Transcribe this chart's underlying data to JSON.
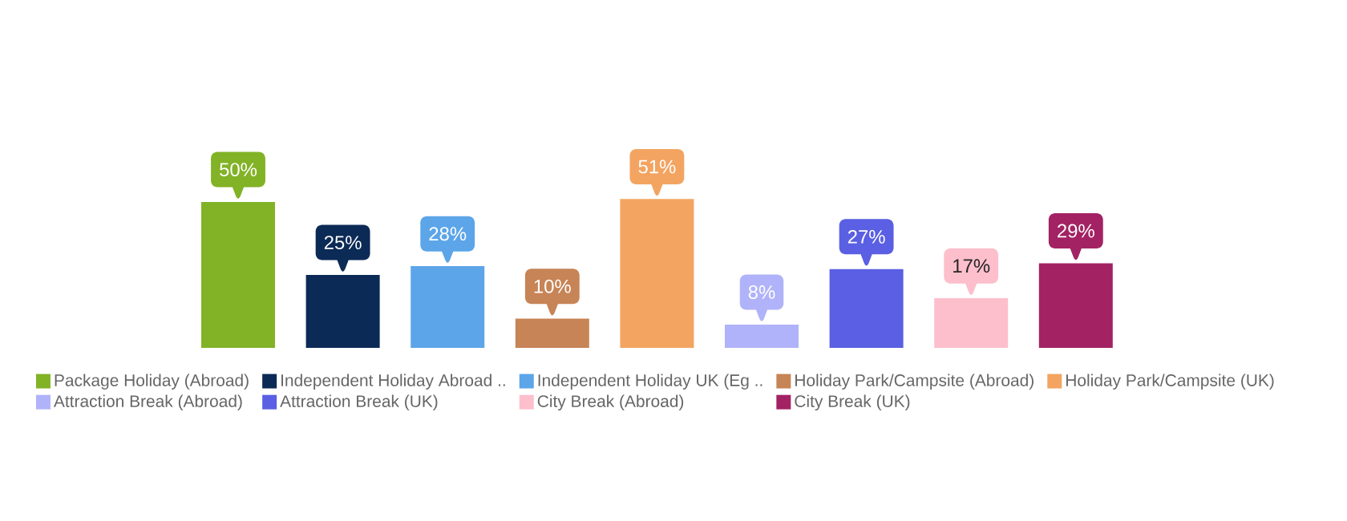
{
  "chart_data": {
    "type": "bar",
    "stacked": true,
    "legend": "bottom",
    "tick_labels": false,
    "categories": [
      null,
      null,
      null,
      null,
      null,
      null,
      null,
      null,
      null
    ],
    "series": [
      {
        "name": "Package Holiday (Abroad)",
        "color": "#82b226",
        "values": [
          50,
          null,
          null,
          null,
          null,
          null,
          null,
          null,
          null
        ],
        "value_labels": [
          "50%",
          null,
          null,
          null,
          null,
          null,
          null,
          null,
          null
        ]
      },
      {
        "name": "Independent Holiday Abroad ..",
        "color": "#0c2a56",
        "values": [
          null,
          25,
          null,
          null,
          null,
          null,
          null,
          null,
          null
        ],
        "value_labels": [
          null,
          "25%",
          null,
          null,
          null,
          null,
          null,
          null,
          null
        ]
      },
      {
        "name": "Independent Holiday UK (Eg ..",
        "color": "#5ca5e9",
        "values": [
          null,
          null,
          28,
          null,
          null,
          null,
          null,
          null,
          null
        ],
        "value_labels": [
          null,
          null,
          "28%",
          null,
          null,
          null,
          null,
          null,
          null
        ]
      },
      {
        "name": "Holiday Park/Campsite (Abroad)",
        "color": "#c78456",
        "values": [
          null,
          null,
          null,
          10,
          null,
          null,
          null,
          null,
          null
        ],
        "value_labels": [
          null,
          null,
          null,
          "10%",
          null,
          null,
          null,
          null,
          null
        ]
      },
      {
        "name": "Holiday Park/Campsite (UK)",
        "color": "#f3a461",
        "values": [
          null,
          null,
          null,
          null,
          51,
          null,
          null,
          null,
          null
        ],
        "value_labels": [
          null,
          null,
          null,
          null,
          "51%",
          null,
          null,
          null,
          null
        ]
      },
      {
        "name": "Attraction Break (Abroad)",
        "color": "#b0b3f9",
        "values": [
          null,
          null,
          null,
          null,
          null,
          8,
          null,
          null,
          null
        ],
        "value_labels": [
          null,
          null,
          null,
          null,
          null,
          "8%",
          null,
          null,
          null
        ]
      },
      {
        "name": "Attraction Break (UK)",
        "color": "#5a5fe3",
        "values": [
          null,
          null,
          null,
          null,
          null,
          null,
          27,
          null,
          null
        ],
        "value_labels": [
          null,
          null,
          null,
          null,
          null,
          null,
          "27%",
          null,
          null
        ]
      },
      {
        "name": "City Break (Abroad)",
        "color": "#fdbfcc",
        "values": [
          null,
          null,
          null,
          null,
          null,
          null,
          null,
          17,
          null
        ],
        "value_labels": [
          null,
          null,
          null,
          null,
          null,
          null,
          null,
          "17%",
          null
        ]
      },
      {
        "name": "City Break (UK)",
        "color": "#a32263",
        "values": [
          null,
          null,
          null,
          null,
          null,
          null,
          null,
          null,
          29
        ],
        "value_labels": [
          null,
          null,
          null,
          null,
          null,
          null,
          null,
          null,
          "29%"
        ]
      }
    ]
  }
}
